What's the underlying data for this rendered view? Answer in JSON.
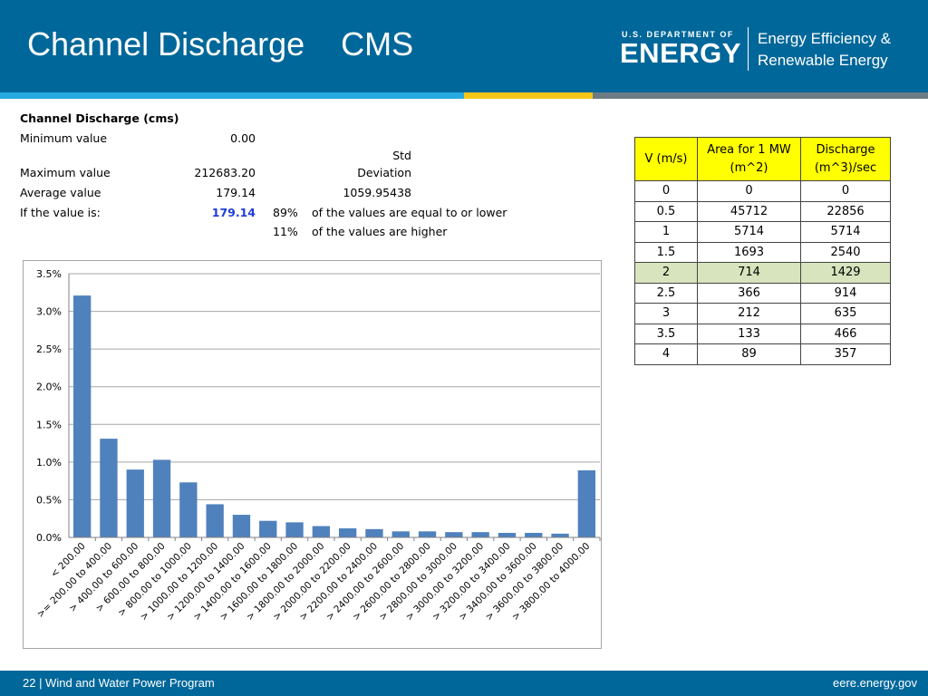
{
  "header": {
    "title": "Channel Discharge    CMS",
    "doe_small": "U.S. DEPARTMENT OF",
    "doe_big": "ENERGY",
    "eere_line1": "Energy Efficiency &",
    "eere_line2": "Renewable Energy"
  },
  "stats": {
    "heading": "Channel Discharge (cms)",
    "min_label": "Minimum value",
    "min_value": "0.00",
    "std_label1": "Std",
    "std_label2": "Deviation",
    "max_label": "Maximum value",
    "max_value": "212683.20",
    "avg_label": "Average value",
    "avg_value": "179.14",
    "std_value": "1059.95438",
    "if_label": "If the value is:",
    "if_value": "179.14",
    "pct_lower": "89%",
    "pct_lower_text": "of the values are equal to or lower",
    "pct_higher": "11%",
    "pct_higher_text": "of the values are higher"
  },
  "velocity_table": {
    "headers": [
      [
        "V (m/s)"
      ],
      [
        "Area for 1 MW",
        "(m^2)"
      ],
      [
        "Discharge",
        "(m^3)/sec"
      ]
    ],
    "rows": [
      [
        "0",
        "0",
        "0"
      ],
      [
        "0.5",
        "45712",
        "22856"
      ],
      [
        "1",
        "5714",
        "5714"
      ],
      [
        "1.5",
        "1693",
        "2540"
      ],
      [
        "2",
        "714",
        "1429"
      ],
      [
        "2.5",
        "366",
        "914"
      ],
      [
        "3",
        "212",
        "635"
      ],
      [
        "3.5",
        "133",
        "466"
      ],
      [
        "4",
        "89",
        "357"
      ]
    ],
    "highlight_row": 4,
    "highlight_color": "#d7e4bd",
    "header_color": "#ffff00"
  },
  "chart_data": {
    "type": "bar",
    "title": "",
    "xlabel": "",
    "ylabel": "",
    "categories": [
      "< 200.00",
      ">= 200.00 to 400.00",
      "> 400.00 to 600.00",
      "> 600.00 to 800.00",
      "> 800.00 to 1000.00",
      "> 1000.00 to 1200.00",
      "> 1200.00 to 1400.00",
      "> 1400.00 to 1600.00",
      "> 1600.00 to 1800.00",
      "> 1800.00 to 2000.00",
      "> 2000.00 to 2200.00",
      "> 2200.00 to 2400.00",
      "> 2400.00 to 2600.00",
      "> 2600.00 to 2800.00",
      "> 2800.00 to 3000.00",
      "> 3000.00 to 3200.00",
      "> 3200.00 to 3400.00",
      "> 3400.00 to 3600.00",
      "> 3600.00 to 3800.00",
      "> 3800.00 to 4000.00"
    ],
    "values": [
      3.21,
      1.31,
      0.9,
      1.03,
      0.73,
      0.44,
      0.3,
      0.22,
      0.2,
      0.15,
      0.12,
      0.11,
      0.08,
      0.08,
      0.07,
      0.07,
      0.06,
      0.06,
      0.05,
      0.89
    ],
    "ylim": [
      0,
      3.5
    ],
    "yticks": [
      "0.0%",
      "0.5%",
      "1.0%",
      "1.5%",
      "2.0%",
      "2.5%",
      "3.0%",
      "3.5%"
    ],
    "grid": true,
    "bar_color": "#4f81bd"
  },
  "footer": {
    "left": "22 | Wind and Water Power Program",
    "right": "eere.energy.gov"
  }
}
